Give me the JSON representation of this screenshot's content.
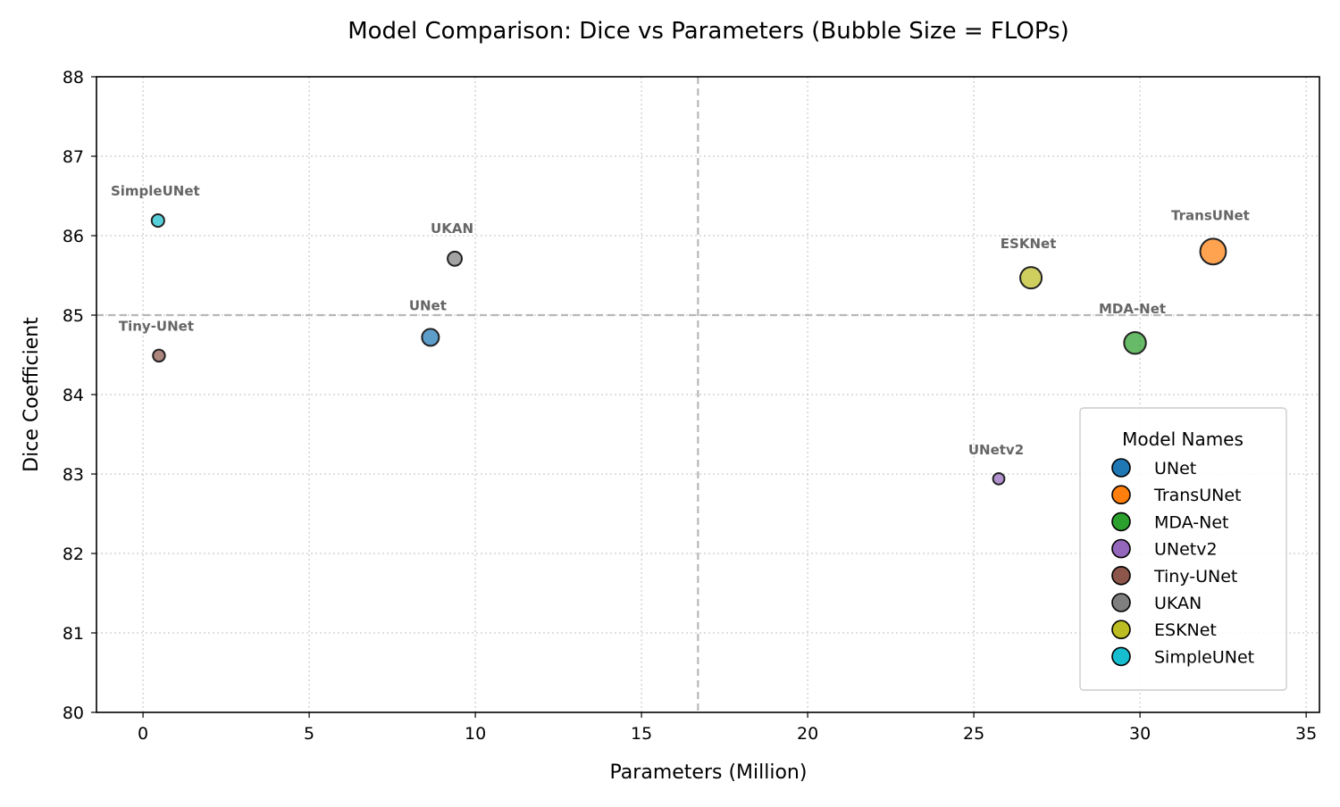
{
  "chart_data": {
    "type": "scatter",
    "title": "Model Comparison: Dice vs Parameters (Bubble Size = FLOPs)",
    "xlabel": "Parameters (Million)",
    "ylabel": "Dice Coefficient",
    "xlim": [
      -1.4,
      35.4
    ],
    "ylim": [
      80,
      88
    ],
    "xticks": [
      0,
      5,
      10,
      15,
      20,
      25,
      30,
      35
    ],
    "yticks": [
      80,
      81,
      82,
      83,
      84,
      85,
      86,
      87,
      88
    ],
    "grid": true,
    "reference_lines": {
      "x": 16.7,
      "y": 85
    },
    "legend": {
      "title": "Model Names",
      "placement": "lower-right"
    },
    "points": [
      {
        "name": "UNet",
        "x": 8.65,
        "y": 84.72,
        "color": "#1f77b4",
        "size": 1.0
      },
      {
        "name": "TransUNet",
        "x": 32.2,
        "y": 85.8,
        "color": "#ff7f0e",
        "size": 2.3
      },
      {
        "name": "MDA-Net",
        "x": 29.85,
        "y": 84.65,
        "color": "#2ca02c",
        "size": 1.65
      },
      {
        "name": "UNetv2",
        "x": 25.75,
        "y": 82.94,
        "color": "#9467bd",
        "size": 0.45
      },
      {
        "name": "Tiny-UNet",
        "x": 0.48,
        "y": 84.49,
        "color": "#8c564b",
        "size": 0.5
      },
      {
        "name": "UKAN",
        "x": 9.38,
        "y": 85.71,
        "color": "#7f7f7f",
        "size": 0.7
      },
      {
        "name": "ESKNet",
        "x": 26.72,
        "y": 85.47,
        "color": "#bcbd22",
        "size": 1.6
      },
      {
        "name": "SimpleUNet",
        "x": 0.45,
        "y": 86.19,
        "color": "#17becf",
        "size": 0.55
      }
    ]
  }
}
